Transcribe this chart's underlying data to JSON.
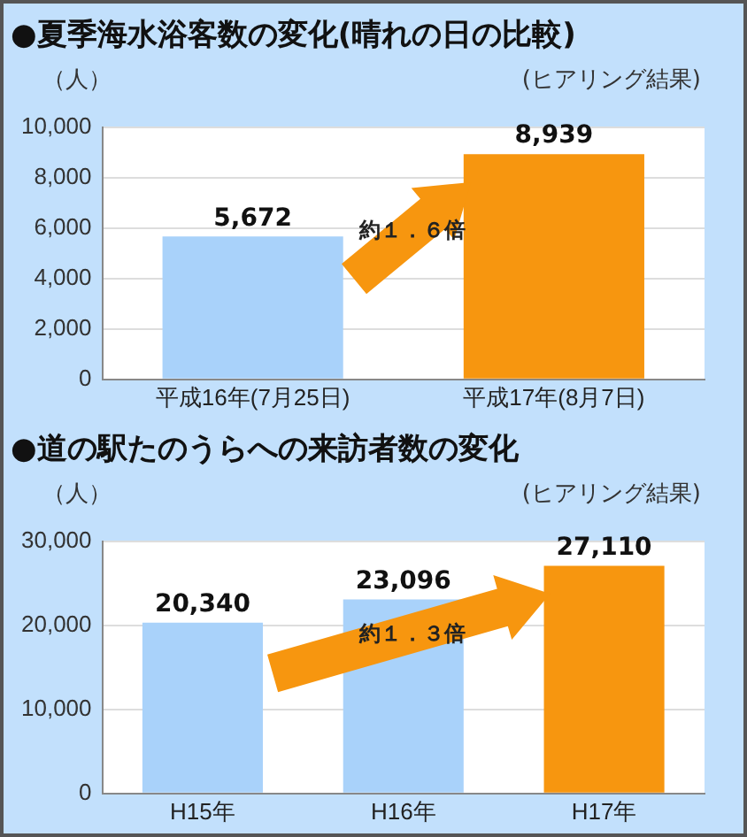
{
  "chart_data": [
    {
      "type": "bar",
      "title": "●夏季海水浴客数の変化(晴れの日の比較)",
      "ylabel": "（人）",
      "subtitle": "(ヒアリング結果)",
      "annotations": [
        "約１．６倍"
      ],
      "categories": [
        "平成16年(7月25日)",
        "平成17年(8月7日)"
      ],
      "values": [
        5672,
        8939
      ],
      "value_labels": [
        "5,672",
        "8,939"
      ],
      "colors": [
        "#a9d2fa",
        "#f7960f"
      ],
      "ylim": [
        0,
        10000
      ],
      "yticks": [
        0,
        {
          "value": 2000,
          "label": "2,000"
        },
        {
          "value": 4000,
          "label": "4,000"
        },
        {
          "value": 6000,
          "label": "6,000"
        },
        {
          "value": 8000,
          "label": "8,000"
        },
        {
          "value": 10000,
          "label": "10,000"
        }
      ],
      "grid": "y"
    },
    {
      "type": "bar",
      "title": "●道の駅たのうらへの来訪者数の変化",
      "ylabel": "（人）",
      "subtitle": "(ヒアリング結果)",
      "annotations": [
        "約１．３倍"
      ],
      "categories": [
        "H15年",
        "H16年",
        "H17年"
      ],
      "values": [
        20340,
        23096,
        27110
      ],
      "value_labels": [
        "20,340",
        "23,096",
        "27,110"
      ],
      "colors": [
        "#a9d2fa",
        "#a9d2fa",
        "#f7960f"
      ],
      "ylim": [
        0,
        30000
      ],
      "yticks": [
        0,
        {
          "value": 10000,
          "label": "10,000"
        },
        {
          "value": 20000,
          "label": "20,000"
        },
        {
          "value": 30000,
          "label": "30,000"
        }
      ],
      "grid": "y"
    }
  ]
}
